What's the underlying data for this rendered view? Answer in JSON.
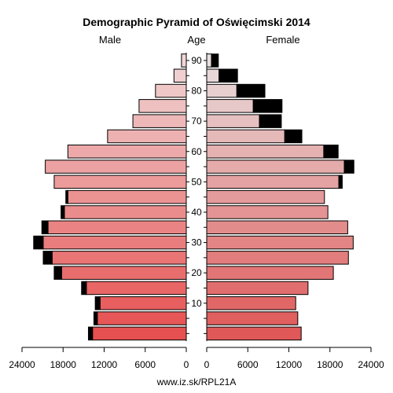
{
  "chart_data": {
    "type": "bar",
    "title": "Demographic Pyramid of Oświęcimski 2014",
    "left_label": "Male",
    "center_label": "Age",
    "right_label": "Female",
    "source": "www.iz.sk/RPL21A",
    "age_ticks": [
      "10",
      "20",
      "30",
      "40",
      "50",
      "60",
      "70",
      "80",
      "90"
    ],
    "x_ticks_left": [
      "24000",
      "18000",
      "12000",
      "6000",
      "0"
    ],
    "x_ticks_right": [
      "0",
      "6000",
      "12000",
      "18000",
      "24000"
    ],
    "xlim": [
      0,
      24000
    ],
    "age_groups": [
      "0-4",
      "5-9",
      "10-14",
      "15-19",
      "20-24",
      "25-29",
      "30-34",
      "35-39",
      "40-44",
      "45-49",
      "50-54",
      "55-59",
      "60-64",
      "65-69",
      "70-74",
      "75-79",
      "80-84",
      "85-89",
      "90+"
    ],
    "series": [
      {
        "name": "Male",
        "totals": [
          14300,
          13500,
          13300,
          15300,
          19300,
          20900,
          22300,
          21100,
          18300,
          17600,
          19300,
          20600,
          17300,
          11500,
          7800,
          6900,
          4500,
          1800,
          700
        ],
        "surplus": [
          600,
          500,
          700,
          700,
          1100,
          1300,
          1400,
          900,
          500,
          300,
          0,
          0,
          0,
          0,
          0,
          0,
          0,
          0,
          0
        ]
      },
      {
        "name": "Female",
        "totals": [
          13800,
          13300,
          13000,
          14800,
          18500,
          20700,
          21400,
          20600,
          17700,
          17200,
          19800,
          21500,
          19200,
          13900,
          10900,
          11000,
          8500,
          4500,
          1700
        ],
        "surplus": [
          0,
          0,
          0,
          0,
          0,
          0,
          0,
          0,
          0,
          0,
          500,
          1400,
          2100,
          2500,
          3200,
          4200,
          4100,
          2700,
          1000
        ]
      }
    ],
    "colors": {
      "male_low": "#e65050",
      "male_high": "#f0d6d6",
      "female_low": "#e05858",
      "female_high": "#e8dede",
      "surplus": "#000000",
      "outline": "#000000"
    }
  }
}
